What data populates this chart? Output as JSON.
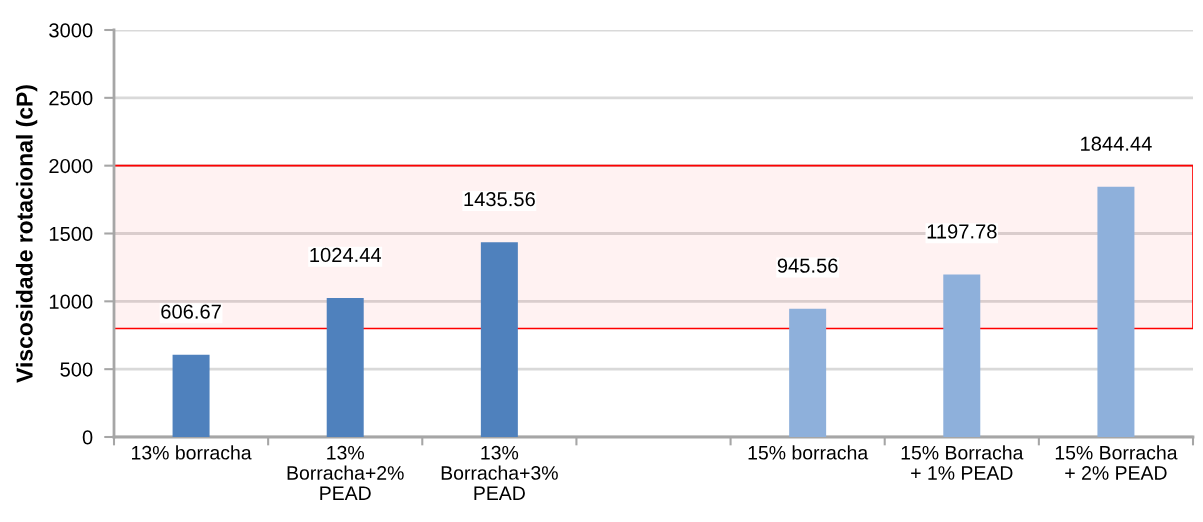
{
  "chart_data": {
    "type": "bar",
    "ylabel": "Viscosidade rotacional (cP)",
    "categories": [
      "13% borracha",
      "13%\nBorracha+2%\nPEAD",
      "13%\nBorracha+3%\nPEAD",
      null,
      "15% borracha",
      "15% Borracha\n+ 1% PEAD",
      "15% Borracha\n+ 2% PEAD"
    ],
    "values": [
      606.67,
      1024.44,
      1435.56,
      null,
      945.56,
      1197.78,
      1844.44
    ],
    "colors": [
      "#4f81bd",
      "#4f81bd",
      "#4f81bd",
      "#4f81bd",
      "#8eb0db",
      "#8eb0db",
      "#8eb0db"
    ],
    "ylim": [
      0,
      3000
    ],
    "yticks": [
      0,
      500,
      1000,
      1500,
      2000,
      2500,
      3000
    ],
    "grid": "y",
    "data_labels": true,
    "bands": [
      {
        "axis": "y",
        "from": 800,
        "to": 2000,
        "color": "#ff0000"
      }
    ]
  }
}
